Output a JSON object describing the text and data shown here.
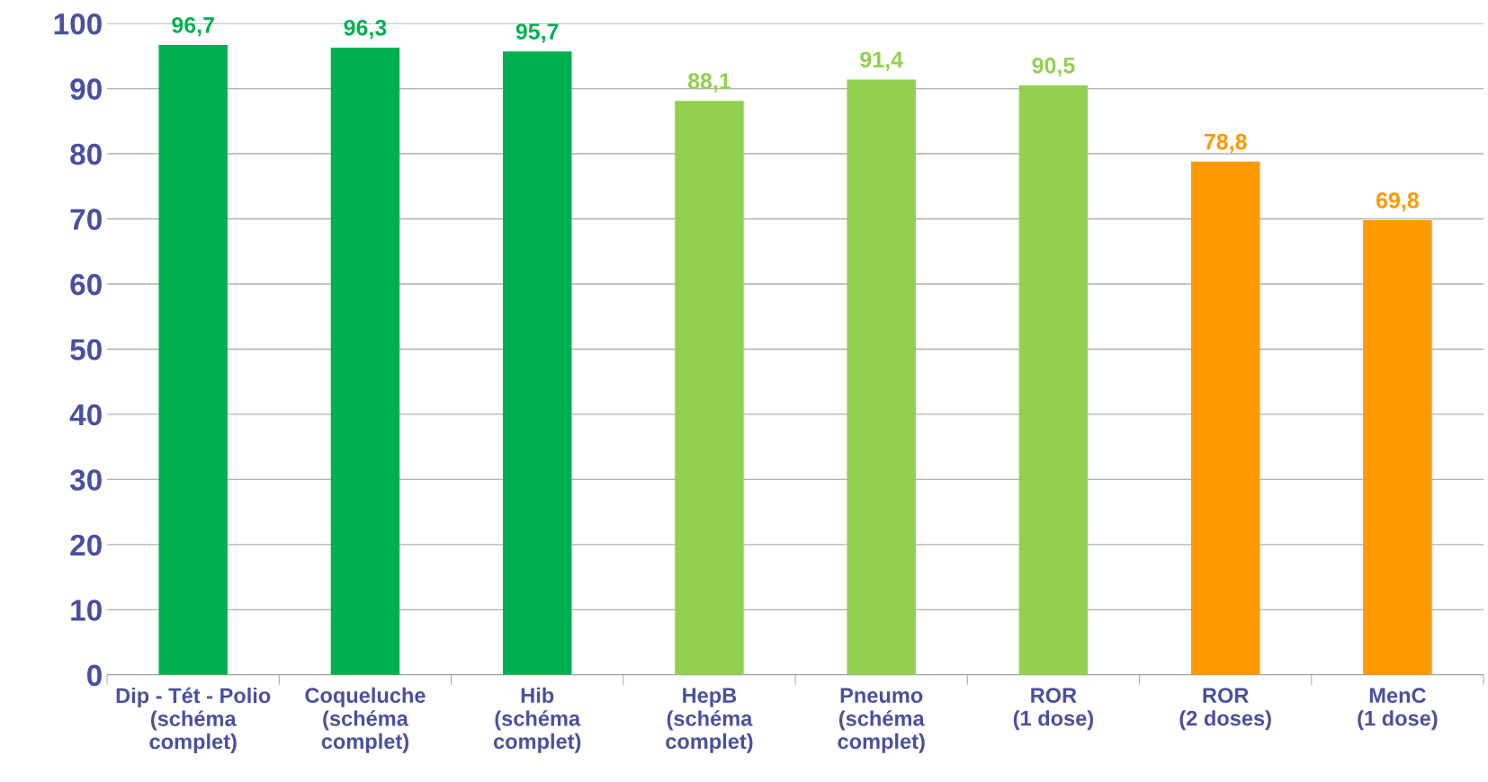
{
  "chart_data": {
    "type": "bar",
    "categories": [
      "Dip - Tét - Polio\n(schéma\ncomplet)",
      "Coqueluche\n(schéma\ncomplet)",
      "Hib\n(schéma\ncomplet)",
      "HepB\n(schéma\ncomplet)",
      "Pneumo\n(schéma\ncomplet)",
      "ROR\n(1 dose)",
      "ROR\n(2 doses)",
      "MenC\n(1 dose)"
    ],
    "values": [
      96.7,
      96.3,
      95.7,
      88.1,
      91.4,
      90.5,
      78.8,
      69.8
    ],
    "value_labels": [
      "96,7",
      "96,3",
      "95,7",
      "88,1",
      "91,4",
      "90,5",
      "78,8",
      "69,8"
    ],
    "colors": [
      "#00b050",
      "#00b050",
      "#00b050",
      "#92d050",
      "#92d050",
      "#92d050",
      "#ff9900",
      "#ff9900"
    ],
    "ylim": [
      0,
      100
    ],
    "yticks": [
      0,
      10,
      20,
      30,
      40,
      50,
      60,
      70,
      80,
      90,
      100
    ],
    "grid": "y",
    "legend": false
  }
}
